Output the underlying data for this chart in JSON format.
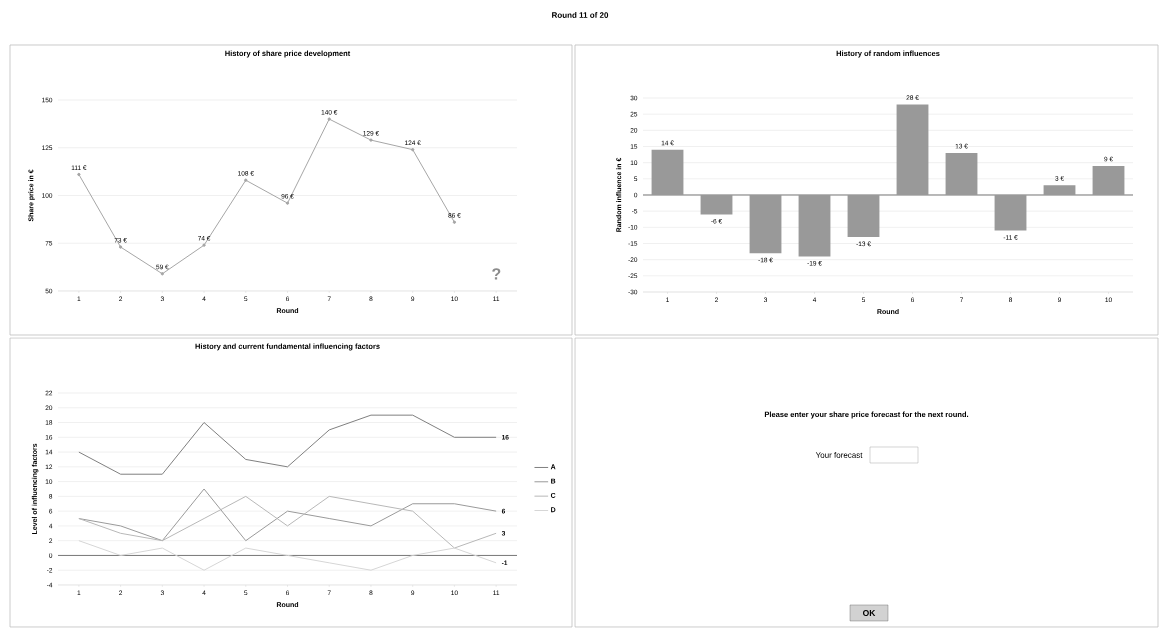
{
  "chart_data": [
    {
      "type": "line",
      "title": "History of share price development",
      "xlabel": "Round",
      "ylabel": "Share price in €",
      "categories": [
        "1",
        "2",
        "3",
        "4",
        "5",
        "6",
        "7",
        "8",
        "9",
        "10",
        "11"
      ],
      "values": [
        111,
        73,
        59,
        74,
        108,
        96,
        140,
        129,
        124,
        86,
        null
      ],
      "value_labels": [
        "111 €",
        "73 €",
        "59 €",
        "74 €",
        "108 €",
        "96 €",
        "140 €",
        "129 €",
        "124 €",
        "86 €",
        null
      ],
      "color": "#a6a6a6",
      "marker": "circle",
      "line_style": "solid",
      "ylim": [
        50,
        150
      ],
      "yticks": [
        50,
        75,
        100,
        125,
        150
      ],
      "grid": "y",
      "annotations": [
        "Round 11 of 20",
        "?"
      ]
    },
    {
      "type": "bar",
      "title": "History of random influences",
      "xlabel": "Round",
      "ylabel": "Random influence in €",
      "categories": [
        "1",
        "2",
        "3",
        "4",
        "5",
        "6",
        "7",
        "8",
        "9",
        "10"
      ],
      "values": [
        14,
        -6,
        -18,
        -19,
        -13,
        28,
        13,
        -11,
        3,
        9
      ],
      "value_labels": [
        "14 €",
        "-6 €",
        "-18 €",
        "-19 €",
        "-13 €",
        "28 €",
        "13 €",
        "-11 €",
        "3 €",
        "9 €"
      ],
      "color": "#999999",
      "ylim": [
        -30,
        30
      ],
      "yticks": [
        -30,
        -25,
        -20,
        -15,
        -10,
        -5,
        0,
        5,
        10,
        15,
        20,
        25,
        30
      ],
      "grid": "y"
    },
    {
      "type": "line",
      "title": "History and current fundamental influencing factors",
      "xlabel": "Round",
      "ylabel": "Level of influencing factors",
      "categories": [
        "1",
        "2",
        "3",
        "4",
        "5",
        "6",
        "7",
        "8",
        "9",
        "10",
        "11"
      ],
      "series": [
        {
          "name": "A",
          "color": "#7f7f7f",
          "values": [
            14,
            11,
            11,
            18,
            13,
            12,
            17,
            19,
            19,
            16,
            16
          ]
        },
        {
          "name": "B",
          "color": "#9a9a9a",
          "values": [
            5,
            4,
            2,
            9,
            2,
            6,
            5,
            4,
            7,
            7,
            6
          ]
        },
        {
          "name": "C",
          "color": "#b8b8b8",
          "values": [
            5,
            3,
            2,
            5,
            8,
            4,
            8,
            7,
            6,
            1,
            3
          ]
        },
        {
          "name": "D",
          "color": "#d6d6d6",
          "values": [
            2,
            0,
            1,
            -2,
            1,
            0,
            -1,
            -2,
            0,
            1,
            -1
          ]
        }
      ],
      "marker": "none",
      "line_style": "solid",
      "legend": "right",
      "ylim": [
        -4,
        22
      ],
      "yticks": [
        -4,
        -2,
        0,
        2,
        4,
        6,
        8,
        10,
        12,
        14,
        16,
        18,
        20,
        22
      ],
      "grid": "y",
      "annotations": [
        {
          "text": "16",
          "x": "11",
          "y": 16
        },
        {
          "text": "6",
          "x": "11",
          "y": 6
        },
        {
          "text": "3",
          "x": "11",
          "y": 3
        },
        {
          "text": "-1",
          "x": "11",
          "y": -1
        }
      ]
    },
    {
      "type": "other",
      "title": "Please enter your share price forecast for the next round.",
      "annotations": [
        "Your forecast",
        "OK"
      ]
    }
  ]
}
